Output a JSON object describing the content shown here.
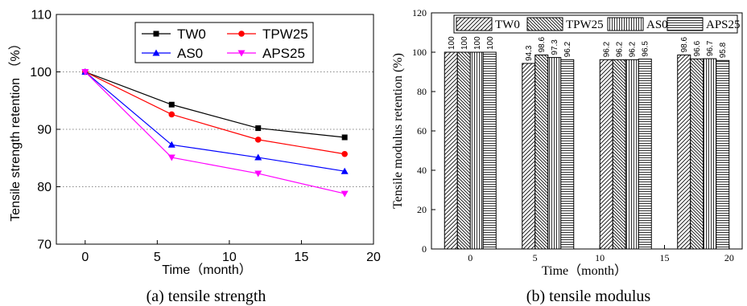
{
  "colors": {
    "TW0": "#000000",
    "TPW25": "#ff0000",
    "AS0": "#0000ff",
    "APS25": "#ff00ff"
  },
  "chart_data": [
    {
      "type": "line",
      "caption": "(a) tensile strength",
      "xlabel": "Time（month）",
      "ylabel": "Tensile strength retention （%）",
      "xlim": [
        -2,
        20
      ],
      "ylim": [
        70,
        110
      ],
      "xticks": [
        "0",
        "5",
        "10",
        "15",
        "20"
      ],
      "yticks": [
        "70",
        "80",
        "90",
        "100",
        "110"
      ],
      "grid": "horizontal dotted",
      "legend": "top-right",
      "x": [
        0,
        6,
        12,
        18
      ],
      "series": [
        {
          "name": "TW0",
          "marker": "square",
          "values": [
            100,
            94.3,
            90.2,
            88.6
          ]
        },
        {
          "name": "TPW25",
          "marker": "circle",
          "values": [
            100,
            92.6,
            88.2,
            85.7
          ]
        },
        {
          "name": "AS0",
          "marker": "triangle-up",
          "values": [
            100,
            87.3,
            85.1,
            82.7
          ]
        },
        {
          "name": "APS25",
          "marker": "triangle-down",
          "values": [
            100,
            85.1,
            82.3,
            78.8
          ]
        }
      ]
    },
    {
      "type": "bar",
      "caption": "(b) tensile modulus",
      "xlabel": "Time（month）",
      "ylabel": "Tensile modulus retention (%)",
      "xlim": [
        -3,
        21
      ],
      "ylim": [
        0,
        120
      ],
      "xticks": [
        "0",
        "5",
        "10",
        "15",
        "20"
      ],
      "yticks": [
        "0",
        "20",
        "40",
        "60",
        "80",
        "100",
        "120"
      ],
      "legend": "top",
      "x": [
        0,
        6,
        12,
        18
      ],
      "series": [
        {
          "name": "TW0",
          "pattern": "diagonal",
          "values": [
            100,
            94.3,
            96.2,
            98.6
          ],
          "labels": [
            "100",
            "94.3",
            "96.2",
            "98.6"
          ]
        },
        {
          "name": "TPW25",
          "pattern": "back-diagonal",
          "values": [
            100,
            98.6,
            96.2,
            96.6
          ],
          "labels": [
            "100",
            "98.6",
            "96.2",
            "96.6"
          ]
        },
        {
          "name": "AS0",
          "pattern": "vertical",
          "values": [
            100,
            97.3,
            96.2,
            96.7
          ],
          "labels": [
            "100",
            "97.3",
            "96.2",
            "96.7"
          ]
        },
        {
          "name": "APS25",
          "pattern": "horizontal",
          "values": [
            100,
            96.2,
            96.5,
            95.8
          ],
          "labels": [
            "100",
            "96.2",
            "96.5",
            "95.8"
          ]
        }
      ]
    }
  ]
}
